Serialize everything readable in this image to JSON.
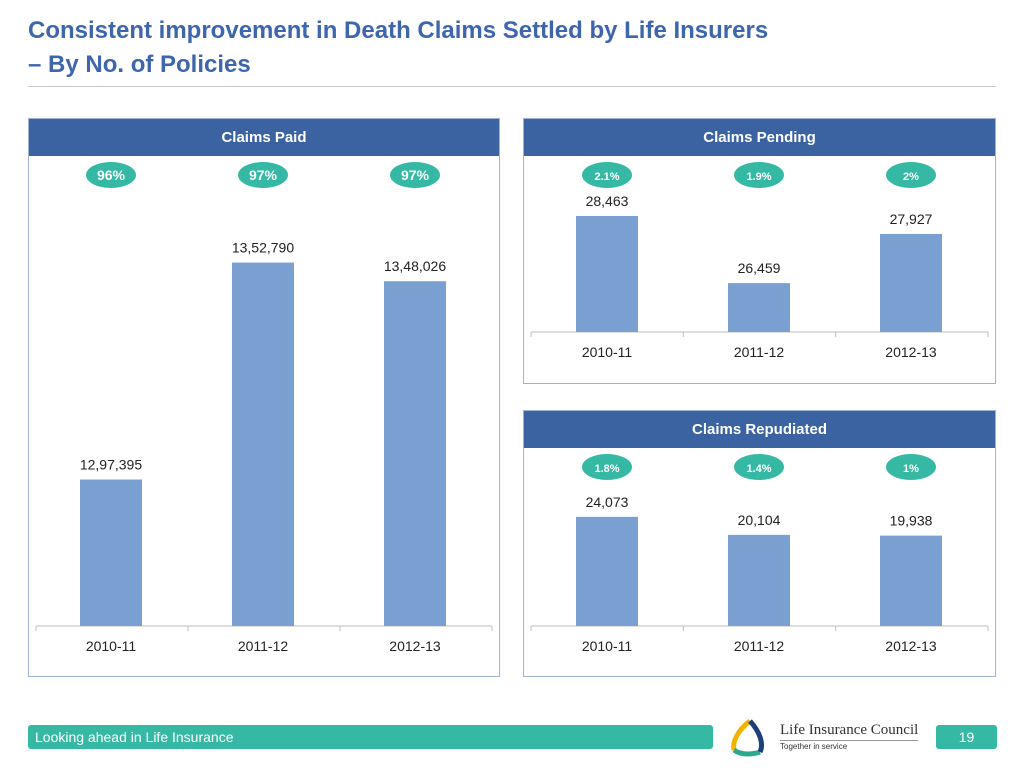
{
  "title_line1": "Consistent improvement in Death Claims Settled by Life Insurers",
  "title_line2": "– By No. of Policies",
  "footer": {
    "text": "Looking ahead in Life Insurance",
    "page": "19",
    "logo_name": "Life Insurance Council",
    "logo_tagline": "Together in service"
  },
  "colors": {
    "header": "#3b63a1",
    "bar": "#7aa0d2",
    "badge": "#35b9a4",
    "title": "#3d66ac"
  },
  "chart_data": [
    {
      "type": "bar",
      "title": "Claims Paid",
      "categories": [
        "2010-11",
        "2011-12",
        "2012-13"
      ],
      "values": [
        1297395,
        1352790,
        1348026
      ],
      "labels": [
        "12,97,395",
        "13,52,790",
        "13,48,026"
      ],
      "badges": [
        "96%",
        "97%",
        "97%"
      ],
      "ylim": [
        1260000,
        1380000
      ],
      "grid": false
    },
    {
      "type": "bar",
      "title": "Claims Pending",
      "categories": [
        "2010-11",
        "2011-12",
        "2012-13"
      ],
      "values": [
        28463,
        26459,
        27927
      ],
      "labels": [
        "28,463",
        "26,459",
        "27,927"
      ],
      "badges": [
        "2.1%",
        "1.9%",
        "2%"
      ],
      "ylim": [
        25000,
        29000
      ],
      "grid": false
    },
    {
      "type": "bar",
      "title": "Claims Repudiated",
      "categories": [
        "2010-11",
        "2011-12",
        "2012-13"
      ],
      "values": [
        24073,
        20104,
        19938
      ],
      "labels": [
        "24,073",
        "20,104",
        "19,938"
      ],
      "badges": [
        "1.8%",
        "1.4%",
        "1%"
      ],
      "ylim": [
        0,
        30000
      ],
      "grid": false
    }
  ]
}
